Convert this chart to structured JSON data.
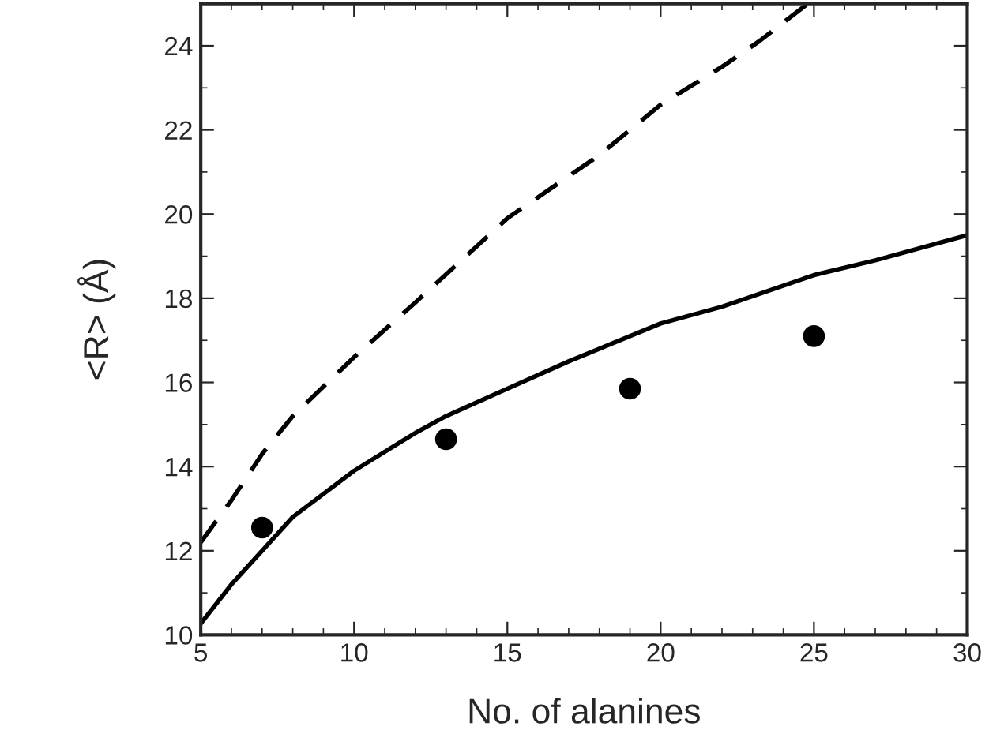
{
  "chart_data": {
    "type": "line",
    "xlabel": "No. of alanines",
    "ylabel": "<R> (Å)",
    "xlim": [
      5,
      30
    ],
    "ylim": [
      10,
      25
    ],
    "xticks": [
      5,
      10,
      15,
      20,
      25,
      30
    ],
    "yticks": [
      10,
      12,
      14,
      16,
      18,
      20,
      22,
      24
    ],
    "grid": false,
    "series": [
      {
        "color": "#000000",
        "line_style": "dashed",
        "x": [
          5,
          6,
          7,
          8,
          10,
          12,
          15,
          18,
          20,
          22,
          23.2,
          24.8
        ],
        "values": [
          12.2,
          13.2,
          14.3,
          15.2,
          16.6,
          17.9,
          19.9,
          21.4,
          22.6,
          23.5,
          24.1,
          25.0
        ]
      },
      {
        "color": "#000000",
        "line_style": "solid",
        "x": [
          5,
          6,
          7,
          8,
          10,
          12,
          13,
          15,
          17,
          20,
          22,
          25,
          27,
          30
        ],
        "values": [
          10.27,
          11.2,
          12.0,
          12.8,
          13.9,
          14.8,
          15.2,
          15.85,
          16.5,
          17.4,
          17.8,
          18.55,
          18.9,
          19.5
        ]
      },
      {
        "type": "scatter",
        "color": "#000000",
        "marker": "circle",
        "x": [
          7,
          13,
          19,
          25
        ],
        "values": [
          12.55,
          14.65,
          15.85,
          17.1
        ]
      }
    ]
  }
}
